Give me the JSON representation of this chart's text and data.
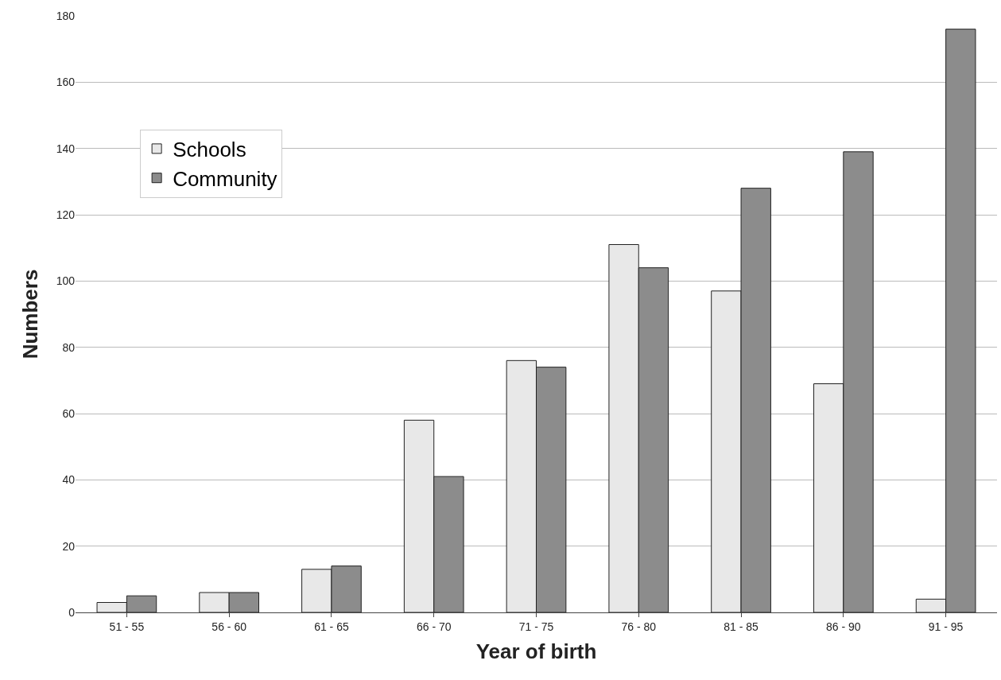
{
  "chart_data": {
    "type": "bar",
    "xlabel": "Year of birth",
    "ylabel": "Numbers",
    "categories": [
      "51 - 55",
      "56 - 60",
      "61 - 65",
      "66 - 70",
      "71 - 75",
      "76 - 80",
      "81 - 85",
      "86 - 90",
      "91 - 95"
    ],
    "series": [
      {
        "name": "Schools",
        "color": "#e8e8e8",
        "values": [
          3,
          6,
          13,
          58,
          76,
          111,
          97,
          69,
          4
        ]
      },
      {
        "name": "Community",
        "color": "#8c8c8c",
        "values": [
          5,
          6,
          14,
          41,
          74,
          104,
          128,
          139,
          176
        ]
      }
    ],
    "ylim": [
      0,
      180
    ],
    "yticks": [
      0,
      20,
      40,
      60,
      80,
      100,
      120,
      140,
      160,
      180
    ],
    "grid": "y",
    "legend": "top left"
  }
}
